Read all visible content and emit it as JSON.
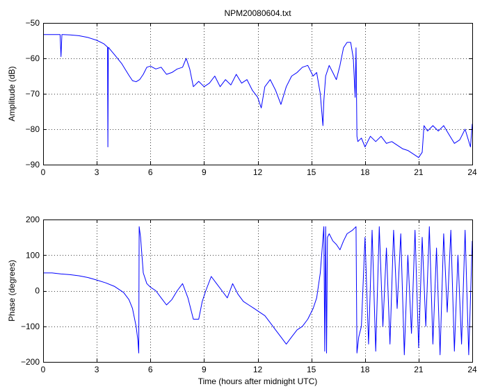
{
  "chart_data": [
    {
      "type": "line",
      "title": "NPM20080604.txt",
      "xlabel": "",
      "ylabel": "Amplitude (dB)",
      "xlim": [
        0,
        24
      ],
      "ylim": [
        -90,
        -50
      ],
      "xticks": [
        "0",
        "3",
        "6",
        "9",
        "12",
        "15",
        "18",
        "21",
        "24"
      ],
      "yticks": [
        "-50",
        "-60",
        "-70",
        "-80",
        "-90"
      ],
      "grid": true,
      "line_color": "#0000ff",
      "series": [
        {
          "x": [
            0,
            0.5,
            0.95,
            1.0,
            1.05,
            1.1,
            1.5,
            2.0,
            2.5,
            3.0,
            3.4,
            3.6,
            3.62,
            3.65,
            3.68,
            3.7,
            4.0,
            4.4,
            4.8,
            5.0,
            5.2,
            5.4,
            5.6,
            5.8,
            6.0,
            6.3,
            6.6,
            6.9,
            7.2,
            7.5,
            7.8,
            8.0,
            8.2,
            8.4,
            8.7,
            9.0,
            9.3,
            9.6,
            9.9,
            10.2,
            10.5,
            10.8,
            11.1,
            11.4,
            11.7,
            12.0,
            12.2,
            12.4,
            12.7,
            13.0,
            13.3,
            13.6,
            13.9,
            14.2,
            14.5,
            14.8,
            15.1,
            15.3,
            15.5,
            15.65,
            15.7,
            15.8,
            16.0,
            16.2,
            16.4,
            16.6,
            16.8,
            17.0,
            17.2,
            17.35,
            17.45,
            17.5,
            17.55,
            17.6,
            17.8,
            18.0,
            18.3,
            18.6,
            18.9,
            19.2,
            19.5,
            19.8,
            20.1,
            20.4,
            20.7,
            21.0,
            21.2,
            21.3,
            21.5,
            21.8,
            22.1,
            22.4,
            22.7,
            23.0,
            23.3,
            23.6,
            23.9,
            24.0
          ],
          "values": [
            -53.3,
            -53.3,
            -53.3,
            -59.5,
            -53.3,
            -53.3,
            -53.4,
            -53.6,
            -54.1,
            -54.9,
            -55.9,
            -56.8,
            -85.0,
            -56.9,
            -57.0,
            -57.2,
            -59.0,
            -61.5,
            -64.8,
            -66.3,
            -66.6,
            -66.0,
            -64.5,
            -62.5,
            -62.2,
            -63.0,
            -62.5,
            -64.5,
            -64.0,
            -63.0,
            -62.5,
            -60.0,
            -63.0,
            -68.0,
            -66.5,
            -68.0,
            -67.0,
            -65.0,
            -68.0,
            -66.0,
            -67.5,
            -64.5,
            -67.0,
            -66.0,
            -69.0,
            -71.0,
            -74.0,
            -68.0,
            -66.0,
            -69.0,
            -73.0,
            -68.0,
            -65.0,
            -64.0,
            -62.5,
            -62.0,
            -65.0,
            -64.0,
            -70.0,
            -79.0,
            -72.0,
            -65.0,
            -62.0,
            -64.0,
            -66.0,
            -62.0,
            -57.0,
            -55.5,
            -55.5,
            -60.0,
            -71.0,
            -57.0,
            -82.0,
            -83.5,
            -82.5,
            -85.0,
            -82.0,
            -83.5,
            -82.0,
            -84.0,
            -83.5,
            -84.5,
            -85.5,
            -86.0,
            -87.0,
            -88.0,
            -86.5,
            -79.0,
            -80.5,
            -79.0,
            -80.5,
            -79.0,
            -81.5,
            -84.0,
            -83.0,
            -80.0,
            -85.0,
            -78.5
          ]
        }
      ]
    },
    {
      "type": "line",
      "title": "",
      "xlabel": "Time (hours after midnight UTC)",
      "ylabel": "Phase (degrees)",
      "xlim": [
        0,
        24
      ],
      "ylim": [
        -200,
        200
      ],
      "xticks": [
        "0",
        "3",
        "6",
        "9",
        "12",
        "15",
        "18",
        "21",
        "24"
      ],
      "yticks": [
        "200",
        "100",
        "0",
        "-100",
        "-200"
      ],
      "grid": true,
      "line_color": "#0000ff",
      "series": [
        {
          "x": [
            0,
            0.5,
            1.0,
            1.5,
            2.0,
            2.5,
            3.0,
            3.5,
            4.0,
            4.5,
            4.8,
            5.0,
            5.2,
            5.3,
            5.35,
            5.37,
            5.45,
            5.6,
            5.8,
            6.0,
            6.3,
            6.6,
            6.9,
            7.2,
            7.5,
            7.8,
            8.1,
            8.4,
            8.7,
            8.9,
            9.1,
            9.4,
            9.7,
            10.0,
            10.3,
            10.6,
            10.9,
            11.2,
            11.5,
            11.8,
            12.1,
            12.4,
            12.7,
            13.0,
            13.3,
            13.6,
            13.9,
            14.2,
            14.5,
            14.8,
            15.1,
            15.3,
            15.5,
            15.7,
            15.75,
            15.8,
            15.85,
            15.9,
            16.0,
            16.2,
            16.4,
            16.6,
            16.8,
            17.0,
            17.3,
            17.5,
            17.55,
            17.65,
            17.8,
            18.0,
            18.2,
            18.4,
            18.6,
            18.8,
            19.0,
            19.2,
            19.4,
            19.6,
            19.8,
            20.0,
            20.2,
            20.4,
            20.6,
            20.8,
            21.0,
            21.2,
            21.4,
            21.6,
            21.8,
            22.0,
            22.2,
            22.4,
            22.6,
            22.8,
            23.0,
            23.2,
            23.4,
            23.6,
            23.8,
            24.0
          ],
          "values": [
            50,
            50,
            47,
            45,
            42,
            37,
            30,
            22,
            12,
            -5,
            -25,
            -50,
            -100,
            -140,
            -175,
            180,
            150,
            50,
            20,
            10,
            0,
            -20,
            -40,
            -25,
            0,
            20,
            -20,
            -80,
            -80,
            -30,
            0,
            40,
            20,
            0,
            -20,
            20,
            -10,
            -30,
            -40,
            -50,
            -60,
            -70,
            -90,
            -110,
            -130,
            -150,
            -130,
            -110,
            -100,
            -80,
            -50,
            -20,
            50,
            180,
            -170,
            180,
            -175,
            150,
            160,
            140,
            130,
            115,
            140,
            160,
            170,
            180,
            -175,
            -130,
            -100,
            150,
            -150,
            170,
            -170,
            180,
            -100,
            120,
            -150,
            170,
            -50,
            160,
            -180,
            100,
            -120,
            170,
            -160,
            150,
            -100,
            180,
            -150,
            120,
            -180,
            160,
            -60,
            170,
            -170,
            100,
            -150,
            170,
            -180,
            140
          ]
        }
      ]
    }
  ]
}
